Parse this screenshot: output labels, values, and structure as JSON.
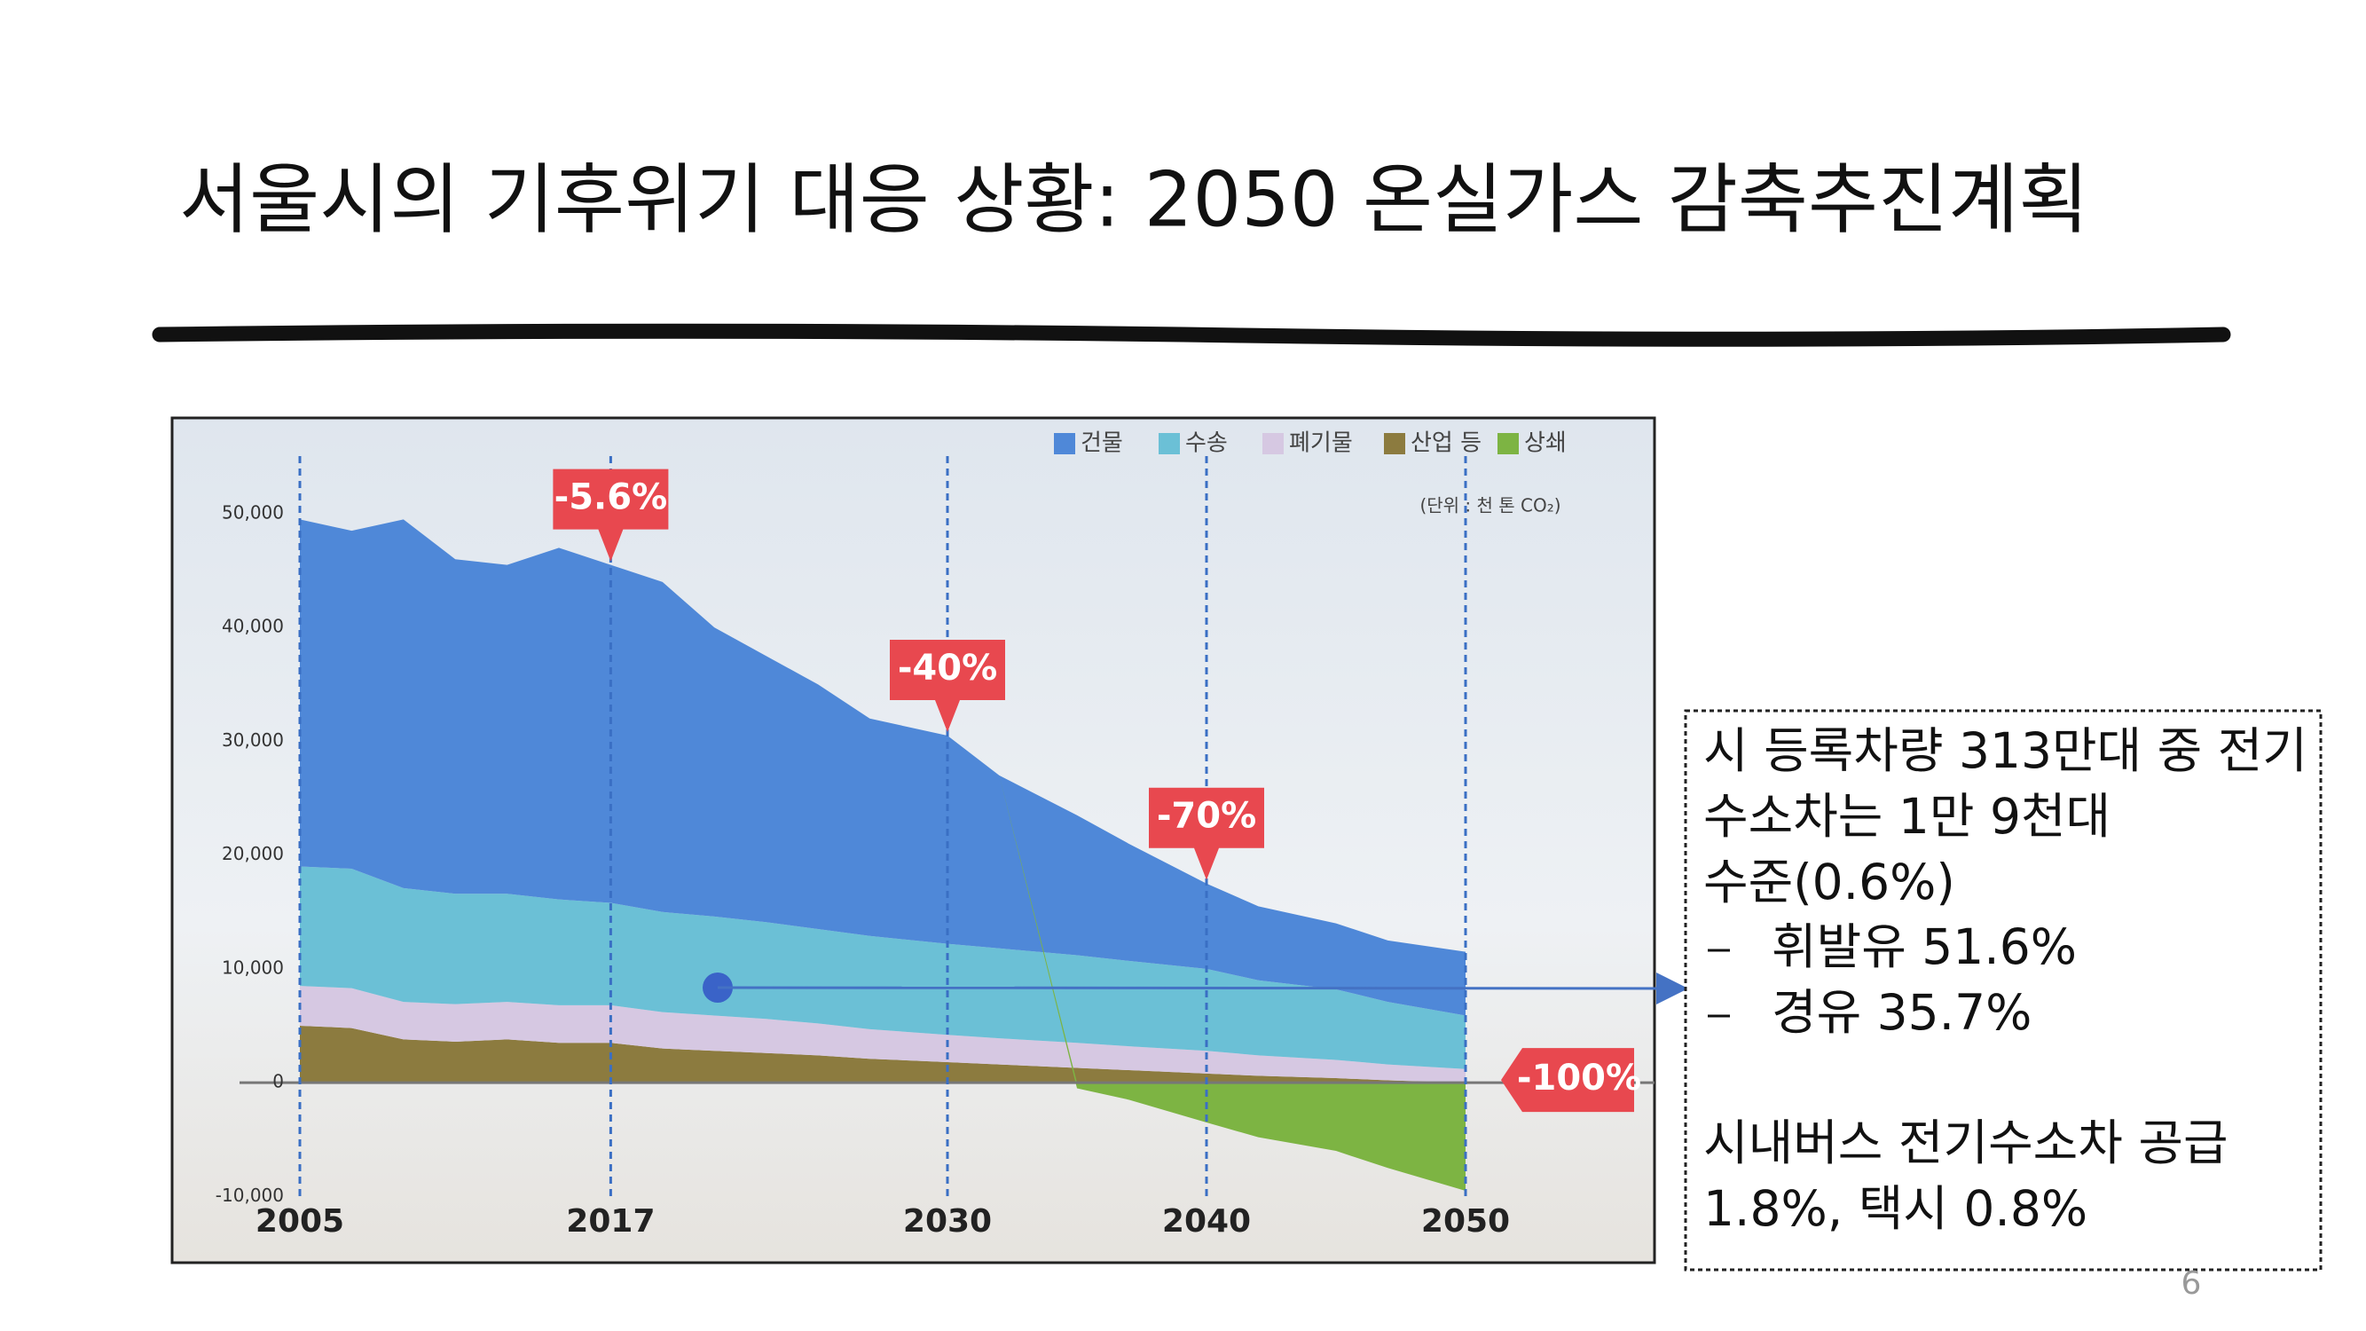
{
  "slide": {
    "title": "서울시의 기후위기 대응 상황: 2050 온실가스 감축추진계획",
    "note": {
      "lines": [
        "시 등록차량 313만대 중 전기",
        "수소차는 1만 9천대",
        "수준(0.6%)"
      ],
      "bullets": [
        "휘발유 51.6%",
        "경유 35.7%"
      ],
      "footer_lines": [
        "시내버스 전기수소차 공급",
        "1.8%, 택시 0.8%"
      ]
    },
    "page_number": "6"
  },
  "chart_data": {
    "type": "stacked_area",
    "unit": "(단위 : 천 톤 CO₂)",
    "x": [
      2005,
      2007,
      2009,
      2011,
      2013,
      2015,
      2017,
      2019,
      2021,
      2023,
      2025,
      2027,
      2030,
      2032,
      2035,
      2037,
      2040,
      2042,
      2045,
      2047,
      2050
    ],
    "xlim": [
      2005,
      2050
    ],
    "xticks": [
      2005,
      2017,
      2030,
      2040,
      2050
    ],
    "ylim": [
      -12000,
      56000
    ],
    "yticks": [
      {
        "value": 50000,
        "label": "50,000"
      },
      {
        "value": 40000,
        "label": "40,000"
      },
      {
        "value": 30000,
        "label": "30,000"
      },
      {
        "value": 20000,
        "label": "20,000"
      },
      {
        "value": 10000,
        "label": "10,000"
      },
      0,
      {
        "value": -10000,
        "label": "-10,000"
      }
    ],
    "series": [
      {
        "name": "산업 등",
        "color": "#8c7b3f",
        "values": [
          5000,
          4800,
          3800,
          3600,
          3800,
          3500,
          3500,
          3000,
          2800,
          2600,
          2400,
          2100,
          1800,
          1600,
          1300,
          1100,
          800,
          600,
          400,
          200,
          0
        ]
      },
      {
        "name": "폐기물",
        "color": "#d6c8e2",
        "values": [
          3500,
          3500,
          3300,
          3300,
          3300,
          3300,
          3300,
          3200,
          3100,
          3000,
          2800,
          2600,
          2400,
          2300,
          2200,
          2100,
          2000,
          1800,
          1600,
          1400,
          1200
        ]
      },
      {
        "name": "수송",
        "color": "#6bc0d6",
        "values": [
          10500,
          10500,
          10000,
          9700,
          9500,
          9300,
          9000,
          8800,
          8700,
          8500,
          8300,
          8200,
          8000,
          7900,
          7700,
          7500,
          7200,
          6600,
          6200,
          5500,
          4700
        ]
      },
      {
        "name": "건물",
        "color": "#4f88d8",
        "values": [
          30500,
          29700,
          32400,
          29400,
          28900,
          30900,
          29700,
          29000,
          25400,
          23400,
          21500,
          19100,
          18300,
          15200,
          12300,
          10300,
          7500,
          6500,
          5800,
          5400,
          5600
        ]
      },
      {
        "name": "상쇄",
        "color": "#7db443",
        "values": [
          0,
          0,
          0,
          0,
          0,
          0,
          0,
          0,
          0,
          0,
          0,
          0,
          0,
          0,
          -500,
          -1500,
          -3500,
          -4800,
          -6000,
          -7500,
          -9500
        ]
      }
    ],
    "legend_order": [
      3,
      2,
      1,
      0,
      4
    ],
    "annotations": [
      {
        "label": "-5.6%",
        "x": 2017
      },
      {
        "label": "-40%",
        "x": 2030
      },
      {
        "label": "-70%",
        "x": 2040
      },
      {
        "label": "-100%",
        "x": 2050
      }
    ]
  }
}
